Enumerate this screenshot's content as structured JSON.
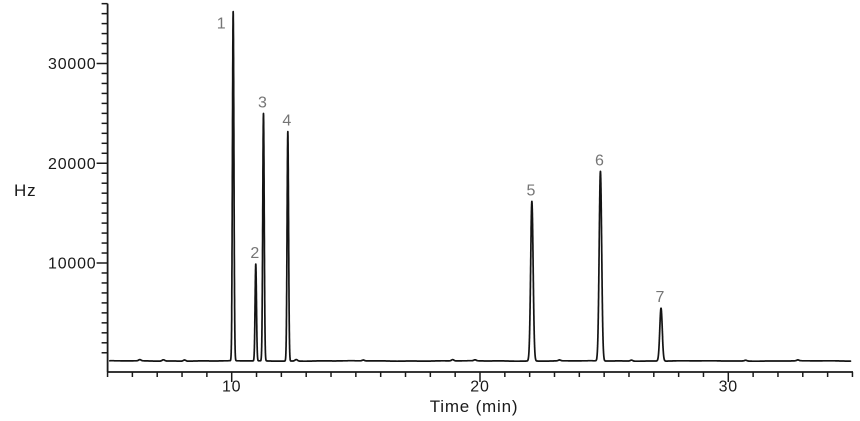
{
  "page": {
    "background": "#ffffff"
  },
  "chart_data": {
    "type": "line",
    "title": "",
    "xlabel": "Time (min)",
    "ylabel": "Hz",
    "grid": false,
    "legend": false,
    "x_axis": {
      "min": 5,
      "max": 35,
      "unit": "min",
      "major_ticks": [
        10,
        20,
        30
      ],
      "major_tick_labels": [
        "10",
        "20",
        "30"
      ],
      "minor_tick_step": 1
    },
    "y_axis": {
      "min": 0,
      "max": 36000,
      "unit": "Hz",
      "major_ticks": [
        10000,
        20000,
        30000
      ],
      "major_tick_labels": [
        "10000",
        "20000",
        "30000"
      ],
      "minor_tick_step": 1000
    },
    "baseline_hz": 180,
    "trace_color": "#141414",
    "axis_color": "#1a1a1a",
    "peak_label_color": "#757575",
    "peaks": [
      {
        "label": "1",
        "time_min": 10.06,
        "height_hz": 35000,
        "sigma_min": 0.03
      },
      {
        "label": "2",
        "time_min": 10.97,
        "height_hz": 9700,
        "sigma_min": 0.028
      },
      {
        "label": "3",
        "time_min": 11.28,
        "height_hz": 24800,
        "sigma_min": 0.03
      },
      {
        "label": "4",
        "time_min": 12.26,
        "height_hz": 23000,
        "sigma_min": 0.03
      },
      {
        "label": "5",
        "time_min": 22.09,
        "height_hz": 16000,
        "sigma_min": 0.05
      },
      {
        "label": "6",
        "time_min": 24.85,
        "height_hz": 19000,
        "sigma_min": 0.05
      },
      {
        "label": "7",
        "time_min": 27.29,
        "height_hz": 5300,
        "sigma_min": 0.05
      }
    ],
    "baseline_bumps": [
      {
        "time_min": 6.3,
        "height_hz": 120
      },
      {
        "time_min": 7.25,
        "height_hz": 130
      },
      {
        "time_min": 8.1,
        "height_hz": 120
      },
      {
        "time_min": 12.6,
        "height_hz": 150
      },
      {
        "time_min": 15.3,
        "height_hz": 90
      },
      {
        "time_min": 18.9,
        "height_hz": 130
      },
      {
        "time_min": 19.8,
        "height_hz": 100
      },
      {
        "time_min": 23.2,
        "height_hz": 90
      },
      {
        "time_min": 26.1,
        "height_hz": 100
      },
      {
        "time_min": 30.7,
        "height_hz": 80
      },
      {
        "time_min": 32.8,
        "height_hz": 90
      }
    ]
  }
}
